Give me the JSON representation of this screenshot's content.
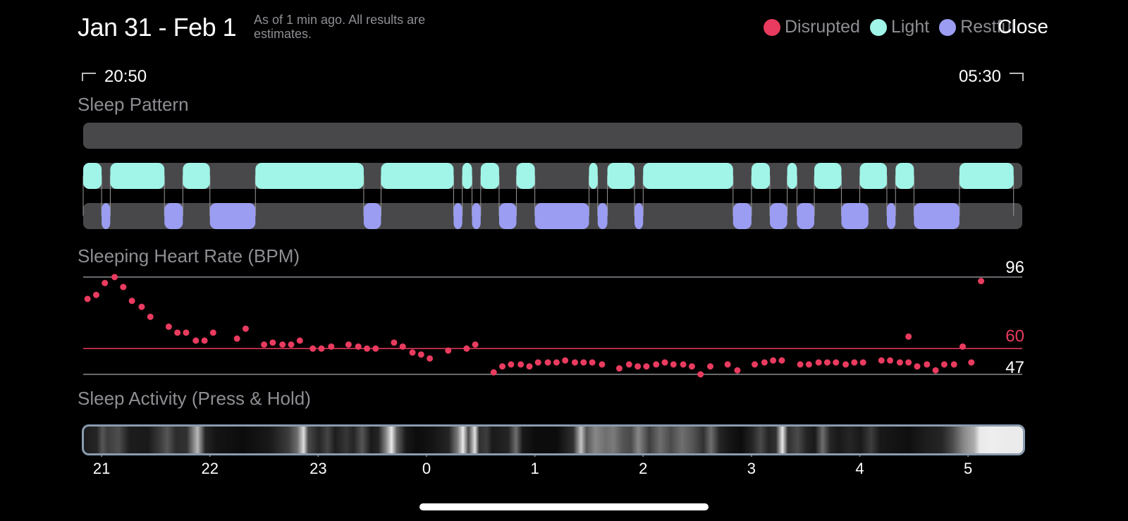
{
  "header": {
    "date_range": "Jan 31 - Feb 1",
    "subtitle": "As of 1 min ago. All results are estimates.",
    "close_label": "Close",
    "legend": [
      {
        "label": "Disrupted",
        "color": "#e93b5f"
      },
      {
        "label": "Light",
        "color": "#a0f5e8"
      },
      {
        "label": "Restful",
        "color": "#9b9df2"
      }
    ]
  },
  "time_range": {
    "start": "20:50",
    "end": "05:30"
  },
  "sections": {
    "sleep_pattern": "Sleep Pattern",
    "heart_rate": "Sleeping Heart Rate (BPM)",
    "activity": "Sleep Activity (Press & Hold)"
  },
  "colors": {
    "track": "#48484a",
    "light": "#a0f5e8",
    "restful": "#9b9df2",
    "disrupted": "#e93b5f",
    "grid": "#8e8e93"
  },
  "sleep_pattern": {
    "light": [
      [
        20.83,
        21.0
      ],
      [
        21.08,
        21.58
      ],
      [
        21.75,
        22.0
      ],
      [
        22.42,
        23.42
      ],
      [
        23.58,
        24.25
      ],
      [
        24.33,
        24.42
      ],
      [
        24.5,
        24.67
      ],
      [
        24.83,
        25.0
      ],
      [
        25.5,
        25.58
      ],
      [
        25.67,
        25.92
      ],
      [
        26.0,
        26.83
      ],
      [
        27.0,
        27.17
      ],
      [
        27.33,
        27.42
      ],
      [
        27.58,
        27.83
      ],
      [
        28.0,
        28.25
      ],
      [
        28.33,
        28.5
      ],
      [
        28.92,
        29.42
      ]
    ],
    "restful": [
      [
        21.0,
        21.08
      ],
      [
        21.58,
        21.75
      ],
      [
        22.0,
        22.42
      ],
      [
        23.42,
        23.58
      ],
      [
        24.25,
        24.33
      ],
      [
        24.42,
        24.5
      ],
      [
        24.67,
        24.83
      ],
      [
        25.0,
        25.5
      ],
      [
        25.58,
        25.67
      ],
      [
        25.92,
        26.0
      ],
      [
        26.83,
        27.0
      ],
      [
        27.17,
        27.33
      ],
      [
        27.42,
        27.58
      ],
      [
        27.83,
        28.08
      ],
      [
        28.25,
        28.33
      ],
      [
        28.5,
        28.92
      ]
    ]
  },
  "heart_rate": {
    "max": "96",
    "reference": "60",
    "min": "47",
    "max_value": 96,
    "reference_value": 60,
    "min_value": 47,
    "points": [
      [
        20.87,
        85
      ],
      [
        20.95,
        87
      ],
      [
        21.03,
        93
      ],
      [
        21.12,
        96
      ],
      [
        21.2,
        91
      ],
      [
        21.28,
        84
      ],
      [
        21.37,
        81
      ],
      [
        21.45,
        76
      ],
      [
        21.62,
        71
      ],
      [
        21.7,
        68
      ],
      [
        21.78,
        68
      ],
      [
        21.87,
        64
      ],
      [
        21.95,
        64
      ],
      [
        22.03,
        68
      ],
      [
        22.25,
        65
      ],
      [
        22.33,
        70
      ],
      [
        22.5,
        62
      ],
      [
        22.58,
        63
      ],
      [
        22.67,
        62
      ],
      [
        22.75,
        62
      ],
      [
        22.83,
        64
      ],
      [
        22.95,
        60
      ],
      [
        23.03,
        60
      ],
      [
        23.12,
        61
      ],
      [
        23.28,
        62
      ],
      [
        23.37,
        61
      ],
      [
        23.45,
        60
      ],
      [
        23.53,
        60
      ],
      [
        23.7,
        63
      ],
      [
        23.78,
        61
      ],
      [
        23.87,
        58
      ],
      [
        23.95,
        57
      ],
      [
        24.03,
        55
      ],
      [
        24.2,
        59
      ],
      [
        24.37,
        60
      ],
      [
        24.45,
        62
      ],
      [
        24.62,
        48
      ],
      [
        24.7,
        51
      ],
      [
        24.78,
        52
      ],
      [
        24.87,
        52
      ],
      [
        24.95,
        51
      ],
      [
        25.03,
        53
      ],
      [
        25.12,
        53
      ],
      [
        25.2,
        53
      ],
      [
        25.28,
        54
      ],
      [
        25.37,
        53
      ],
      [
        25.45,
        53
      ],
      [
        25.53,
        53
      ],
      [
        25.62,
        52
      ],
      [
        25.78,
        50
      ],
      [
        25.87,
        52
      ],
      [
        25.95,
        51
      ],
      [
        26.03,
        51
      ],
      [
        26.12,
        52
      ],
      [
        26.2,
        53
      ],
      [
        26.28,
        52
      ],
      [
        26.37,
        52
      ],
      [
        26.45,
        51
      ],
      [
        26.53,
        47
      ],
      [
        26.62,
        51
      ],
      [
        26.78,
        52
      ],
      [
        26.87,
        49
      ],
      [
        27.03,
        52
      ],
      [
        27.12,
        53
      ],
      [
        27.2,
        54
      ],
      [
        27.28,
        54
      ],
      [
        27.45,
        52
      ],
      [
        27.53,
        52
      ],
      [
        27.62,
        53
      ],
      [
        27.7,
        53
      ],
      [
        27.78,
        53
      ],
      [
        27.87,
        52
      ],
      [
        27.95,
        53
      ],
      [
        28.03,
        53
      ],
      [
        28.2,
        54
      ],
      [
        28.28,
        54
      ],
      [
        28.37,
        53
      ],
      [
        28.45,
        53
      ],
      [
        28.45,
        66
      ],
      [
        28.53,
        51
      ],
      [
        28.62,
        52
      ],
      [
        28.7,
        49
      ],
      [
        28.78,
        52
      ],
      [
        28.87,
        52
      ],
      [
        28.95,
        61
      ],
      [
        29.03,
        53
      ],
      [
        29.12,
        94
      ]
    ]
  },
  "activity": [
    [
      20.83,
      0.12
    ],
    [
      20.95,
      0.15
    ],
    [
      21.0,
      0.35
    ],
    [
      21.05,
      0.25
    ],
    [
      21.15,
      0.32
    ],
    [
      21.25,
      0.12
    ],
    [
      21.42,
      0.1
    ],
    [
      21.52,
      0.22
    ],
    [
      21.6,
      0.35
    ],
    [
      21.68,
      0.18
    ],
    [
      21.78,
      0.2
    ],
    [
      21.88,
      0.75
    ],
    [
      21.95,
      0.15
    ],
    [
      22.05,
      0.08
    ],
    [
      22.3,
      0.05
    ],
    [
      22.55,
      0.1
    ],
    [
      22.72,
      0.25
    ],
    [
      22.8,
      0.45
    ],
    [
      22.86,
      0.9
    ],
    [
      22.9,
      0.3
    ],
    [
      23.0,
      0.15
    ],
    [
      23.08,
      0.28
    ],
    [
      23.15,
      0.12
    ],
    [
      23.25,
      0.22
    ],
    [
      23.32,
      0.15
    ],
    [
      23.4,
      0.35
    ],
    [
      23.48,
      0.1
    ],
    [
      23.55,
      0.15
    ],
    [
      23.62,
      0.55
    ],
    [
      23.67,
      0.95
    ],
    [
      23.72,
      0.4
    ],
    [
      23.8,
      0.1
    ],
    [
      23.9,
      0.05
    ],
    [
      24.05,
      0.08
    ],
    [
      24.2,
      0.15
    ],
    [
      24.28,
      0.5
    ],
    [
      24.33,
      0.95
    ],
    [
      24.38,
      0.3
    ],
    [
      24.44,
      0.92
    ],
    [
      24.48,
      0.2
    ],
    [
      24.55,
      0.25
    ],
    [
      24.6,
      0.1
    ],
    [
      24.75,
      0.15
    ],
    [
      24.82,
      0.45
    ],
    [
      24.88,
      0.1
    ],
    [
      25.0,
      0.05
    ],
    [
      25.2,
      0.05
    ],
    [
      25.35,
      0.2
    ],
    [
      25.42,
      0.8
    ],
    [
      25.47,
      0.35
    ],
    [
      25.55,
      0.55
    ],
    [
      25.65,
      0.45
    ],
    [
      25.72,
      0.5
    ],
    [
      25.8,
      0.35
    ],
    [
      25.88,
      0.3
    ],
    [
      25.95,
      0.55
    ],
    [
      26.05,
      0.25
    ],
    [
      26.15,
      0.45
    ],
    [
      26.25,
      0.3
    ],
    [
      26.35,
      0.45
    ],
    [
      26.45,
      0.35
    ],
    [
      26.55,
      0.2
    ],
    [
      26.62,
      0.45
    ],
    [
      26.7,
      0.15
    ],
    [
      26.8,
      0.08
    ],
    [
      26.9,
      0.05
    ],
    [
      27.0,
      0.15
    ],
    [
      27.08,
      0.3
    ],
    [
      27.15,
      0.15
    ],
    [
      27.22,
      0.2
    ],
    [
      27.28,
      0.95
    ],
    [
      27.33,
      0.2
    ],
    [
      27.42,
      0.3
    ],
    [
      27.5,
      0.15
    ],
    [
      27.58,
      0.1
    ],
    [
      27.65,
      0.45
    ],
    [
      27.72,
      0.15
    ],
    [
      27.8,
      0.1
    ],
    [
      27.9,
      0.15
    ],
    [
      28.0,
      0.1
    ],
    [
      28.1,
      0.25
    ],
    [
      28.18,
      0.1
    ],
    [
      28.3,
      0.08
    ],
    [
      28.45,
      0.06
    ],
    [
      28.6,
      0.12
    ],
    [
      28.75,
      0.15
    ],
    [
      28.85,
      0.3
    ],
    [
      28.95,
      0.55
    ],
    [
      29.05,
      0.7
    ],
    [
      29.1,
      0.95
    ],
    [
      29.2,
      0.97
    ],
    [
      29.35,
      0.96
    ]
  ],
  "x_ticks": [
    "21",
    "22",
    "23",
    "0",
    "1",
    "2",
    "3",
    "4",
    "5"
  ],
  "x_tick_values": [
    21,
    22,
    23,
    24,
    25,
    26,
    27,
    28,
    29
  ]
}
